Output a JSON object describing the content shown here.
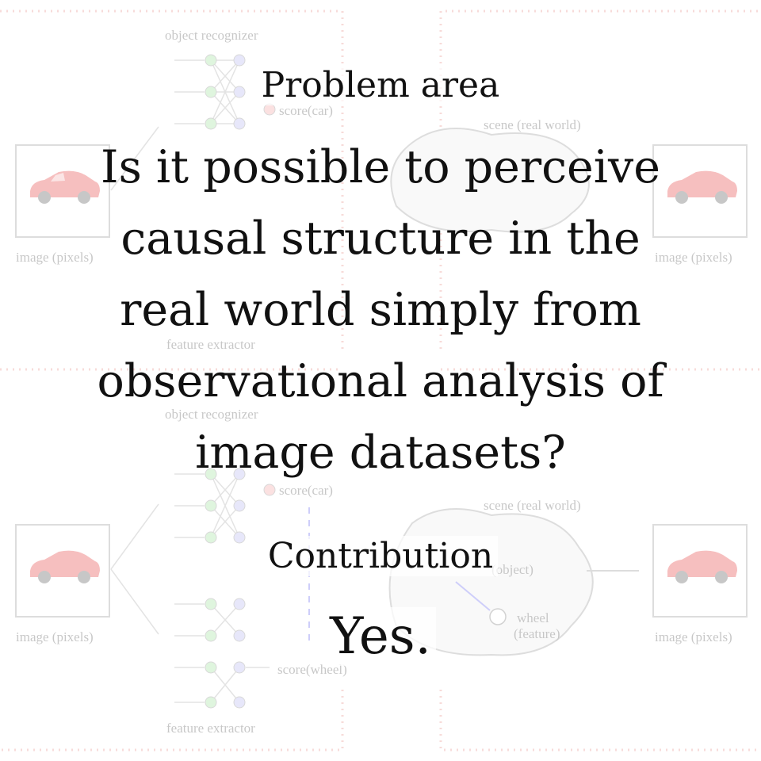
{
  "background": {
    "quadrants": [
      {
        "recognizer_label": "object recognizer",
        "score_label": "score(car)",
        "scene_label": "scene (real world)",
        "image_left_label": "image (pixels)",
        "image_right_label": "image (pixels)",
        "extractor_label": "feature extractor"
      },
      {
        "recognizer_label": "object recognizer",
        "score_label": "score(car)",
        "score2_label": "score(wheel)",
        "scene_label": "scene (real world)",
        "object_label": "(object)",
        "wheel_label": "wheel",
        "feature_label": "(feature)",
        "image_left_label": "image (pixels)",
        "image_right_label": "image (pixels)",
        "extractor_label": "feature extractor"
      }
    ]
  },
  "problem": {
    "heading": "Problem area",
    "question_lines": [
      "Is it possible to perceive",
      "causal structure in the",
      "real world simply from",
      "observational analysis of",
      "image datasets?"
    ]
  },
  "contribution": {
    "heading": "Contribution",
    "answer": "Yes."
  },
  "colors": {
    "dotted_border": "#e8908a",
    "node_green": "#9fe39a",
    "node_purple": "#b8b8f0",
    "node_red": "#f4a3a3",
    "car_red": "#e63a3a",
    "dashed_arrow": "#6a6af0"
  }
}
